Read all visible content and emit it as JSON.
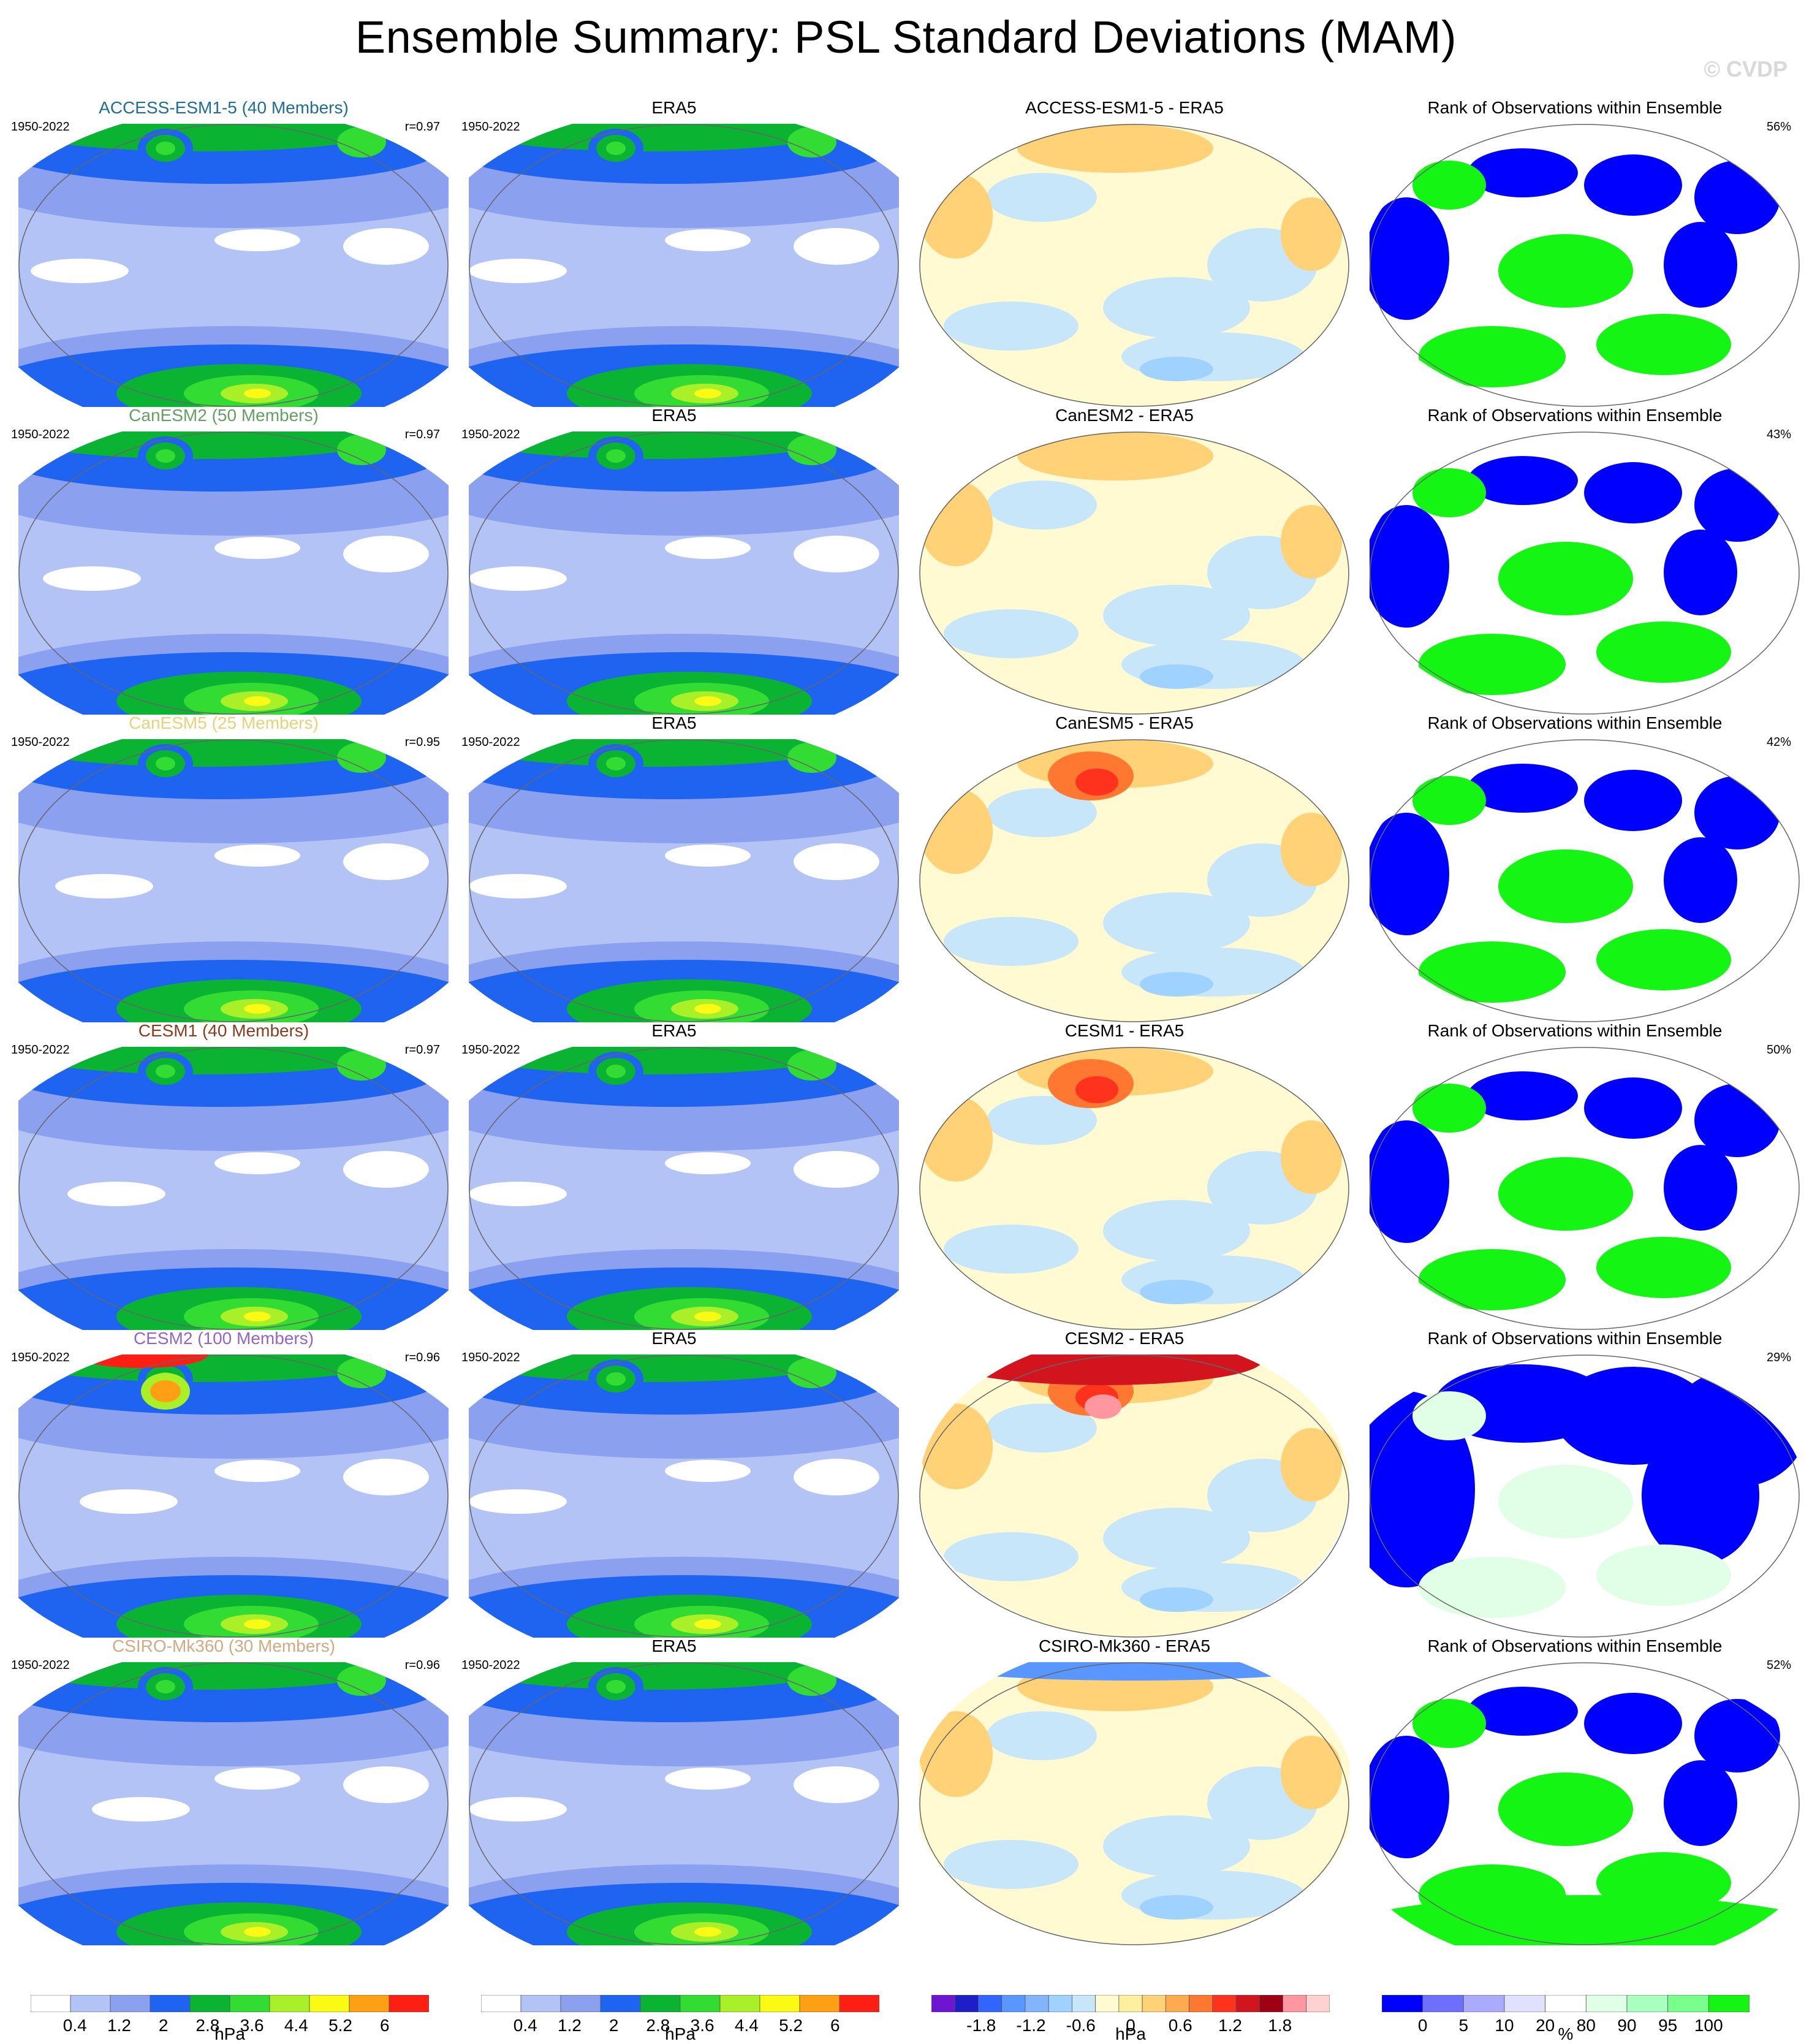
{
  "header": {
    "title": "Ensemble Summary: PSL Standard Deviations (MAM)",
    "watermark": "© CVDP"
  },
  "colors": {
    "std_scale": [
      "#ffffff",
      "#b4c3f5",
      "#8ca0f0",
      "#1e64f0",
      "#0ab432",
      "#32dc32",
      "#aaf028",
      "#fafa14",
      "#ffa014",
      "#ff1e14"
    ],
    "diff_scale": [
      "#6e14d2",
      "#1e1ec8",
      "#3264ff",
      "#5a96ff",
      "#82b4ff",
      "#a0d2ff",
      "#c8e6fa",
      "#fffad2",
      "#fff0a0",
      "#ffd278",
      "#ffaa50",
      "#ff7832",
      "#ff321e",
      "#d2141e",
      "#a00014",
      "#ff96a0",
      "#ffd2d2"
    ],
    "rank_scale": [
      "#0000ff",
      "#6e6eff",
      "#aaaaff",
      "#e1e1ff",
      "#ffffff",
      "#e1ffe6",
      "#aaffbe",
      "#78ff8c",
      "#14f514"
    ]
  },
  "rows": [
    {
      "model": "ACCESS-ESM1-5 (40 Members)",
      "model_color": "#1e6e96",
      "years": "1950-2022",
      "r": "r=0.97",
      "obs": "ERA5",
      "obs_years": "1950-2022",
      "diff": "ACCESS-ESM1-5 - ERA5",
      "rank": "Rank of Observations within Ensemble",
      "pct": "56%"
    },
    {
      "model": "CanESM2 (50 Members)",
      "model_color": "#64a064",
      "years": "1950-2022",
      "r": "r=0.97",
      "obs": "ERA5",
      "obs_years": "1950-2022",
      "diff": "CanESM2 - ERA5",
      "rank": "Rank of Observations within Ensemble",
      "pct": "43%"
    },
    {
      "model": "CanESM5 (25 Members)",
      "model_color": "#e6d278",
      "years": "1950-2022",
      "r": "r=0.95",
      "obs": "ERA5",
      "obs_years": "1950-2022",
      "diff": "CanESM5 - ERA5",
      "rank": "Rank of Observations within Ensemble",
      "pct": "42%"
    },
    {
      "model": "CESM1 (40 Members)",
      "model_color": "#8c3c1e",
      "years": "1950-2022",
      "r": "r=0.97",
      "obs": "ERA5",
      "obs_years": "1950-2022",
      "diff": "CESM1 - ERA5",
      "rank": "Rank of Observations within Ensemble",
      "pct": "50%"
    },
    {
      "model": "CESM2 (100 Members)",
      "model_color": "#9664c8",
      "years": "1950-2022",
      "r": "r=0.96",
      "obs": "ERA5",
      "obs_years": "1950-2022",
      "diff": "CESM2 - ERA5",
      "rank": "Rank of Observations within Ensemble",
      "pct": "29%"
    },
    {
      "model": "CSIRO-Mk360 (30 Members)",
      "model_color": "#d2aa82",
      "years": "1950-2022",
      "r": "r=0.96",
      "obs": "ERA5",
      "obs_years": "1950-2022",
      "diff": "CSIRO-Mk360 - ERA5",
      "rank": "Rank of Observations within Ensemble",
      "pct": "52%"
    }
  ],
  "colorbars": {
    "std": {
      "ticks": [
        "0.4",
        "1.2",
        "2",
        "2.8",
        "3.6",
        "4.4",
        "5.2",
        "6"
      ],
      "units": "hPa"
    },
    "diff": {
      "ticks": [
        "-1.8",
        "-1.2",
        "-0.6",
        "0",
        "0.6",
        "1.2",
        "1.8"
      ],
      "units": "hPa"
    },
    "rank": {
      "ticks": [
        "0",
        "5",
        "10",
        "20",
        "80",
        "90",
        "95",
        "100"
      ],
      "units": "%"
    }
  }
}
